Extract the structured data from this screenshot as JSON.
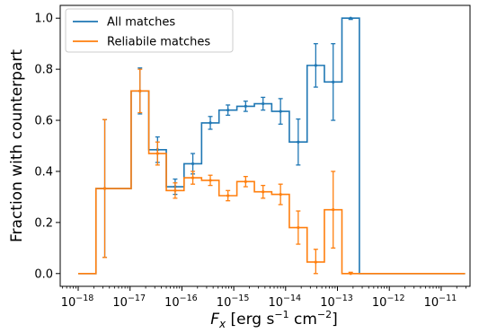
{
  "chart_data": {
    "type": "line",
    "drawstyle": "steps",
    "xscale": "log",
    "xlabel": "F_x [erg s^-1 cm^-2]",
    "xlabel_parts": {
      "main": "F",
      "sub": "x",
      "pre": " [erg s",
      "exp1": "−1",
      "mid": " cm",
      "exp2": "−2",
      "post": "]"
    },
    "ylabel": "Fraction with counterpart",
    "xlim": [
      4.5e-19,
      3.6e-11
    ],
    "ylim": [
      -0.05,
      1.05
    ],
    "xticks": [
      {
        "value": 1e-18,
        "base": "10",
        "exp": "−18"
      },
      {
        "value": 1e-17,
        "base": "10",
        "exp": "−17"
      },
      {
        "value": 1e-16,
        "base": "10",
        "exp": "−16"
      },
      {
        "value": 1e-15,
        "base": "10",
        "exp": "−15"
      },
      {
        "value": 1e-14,
        "base": "10",
        "exp": "−14"
      },
      {
        "value": 1e-13,
        "base": "10",
        "exp": "−13"
      },
      {
        "value": 1e-12,
        "base": "10",
        "exp": "−12"
      },
      {
        "value": 1e-11,
        "base": "10",
        "exp": "−11"
      }
    ],
    "yticks": [
      0.0,
      0.2,
      0.4,
      0.6,
      0.8,
      1.0
    ],
    "ytick_labels": [
      "0.0",
      "0.2",
      "0.4",
      "0.6",
      "0.8",
      "1.0"
    ],
    "grid": false,
    "legend_position": "upper-left",
    "bin_edges": [
      1e-18,
      2.2e-18,
      4.8e-18,
      1.05e-17,
      2.3e-17,
      5e-17,
      1.1e-16,
      2.4e-16,
      5.2e-16,
      1.15e-15,
      2.5e-15,
      5.4e-15,
      1.18e-14,
      2.6e-14,
      5.6e-14,
      1.22e-13,
      2.65e-13,
      5.8e-13,
      1.26e-12,
      2.75e-12,
      6e-12,
      1.3e-11,
      2.9e-11
    ],
    "series": [
      {
        "name": "All matches",
        "color": "#1f77b4",
        "values": [
          0.0,
          0.333,
          0.333,
          0.715,
          0.485,
          0.34,
          0.43,
          0.59,
          0.64,
          0.655,
          0.665,
          0.635,
          0.515,
          0.815,
          0.75,
          1.0,
          0.0,
          0.0,
          0.0,
          0.0,
          0.0,
          0.0
        ],
        "errors": [
          0.0,
          0.27,
          0.27,
          0.09,
          0.05,
          0.03,
          0.04,
          0.025,
          0.02,
          0.02,
          0.025,
          0.05,
          0.09,
          0.085,
          0.15,
          0.005,
          0.0,
          0.0,
          0.0,
          0.0,
          0.0,
          0.0
        ],
        "error_bin_indices": [
          1,
          3,
          4,
          5,
          6,
          7,
          8,
          9,
          10,
          11,
          12,
          13,
          14,
          15
        ]
      },
      {
        "name": "Reliabile matches",
        "color": "#ff7f0e",
        "values": [
          0.0,
          0.333,
          0.333,
          0.715,
          0.47,
          0.325,
          0.375,
          0.365,
          0.305,
          0.36,
          0.32,
          0.31,
          0.18,
          0.045,
          0.25,
          0.0,
          0.0,
          0.0,
          0.0,
          0.0,
          0.0,
          0.0
        ],
        "errors": [
          0.0,
          0.27,
          0.27,
          0.085,
          0.045,
          0.03,
          0.025,
          0.02,
          0.02,
          0.02,
          0.025,
          0.04,
          0.065,
          0.05,
          0.15,
          0.005,
          0.0,
          0.0,
          0.0,
          0.0,
          0.0,
          0.0
        ],
        "error_bin_indices": [
          1,
          3,
          4,
          5,
          6,
          7,
          8,
          9,
          10,
          11,
          12,
          13,
          14,
          15
        ]
      }
    ]
  }
}
